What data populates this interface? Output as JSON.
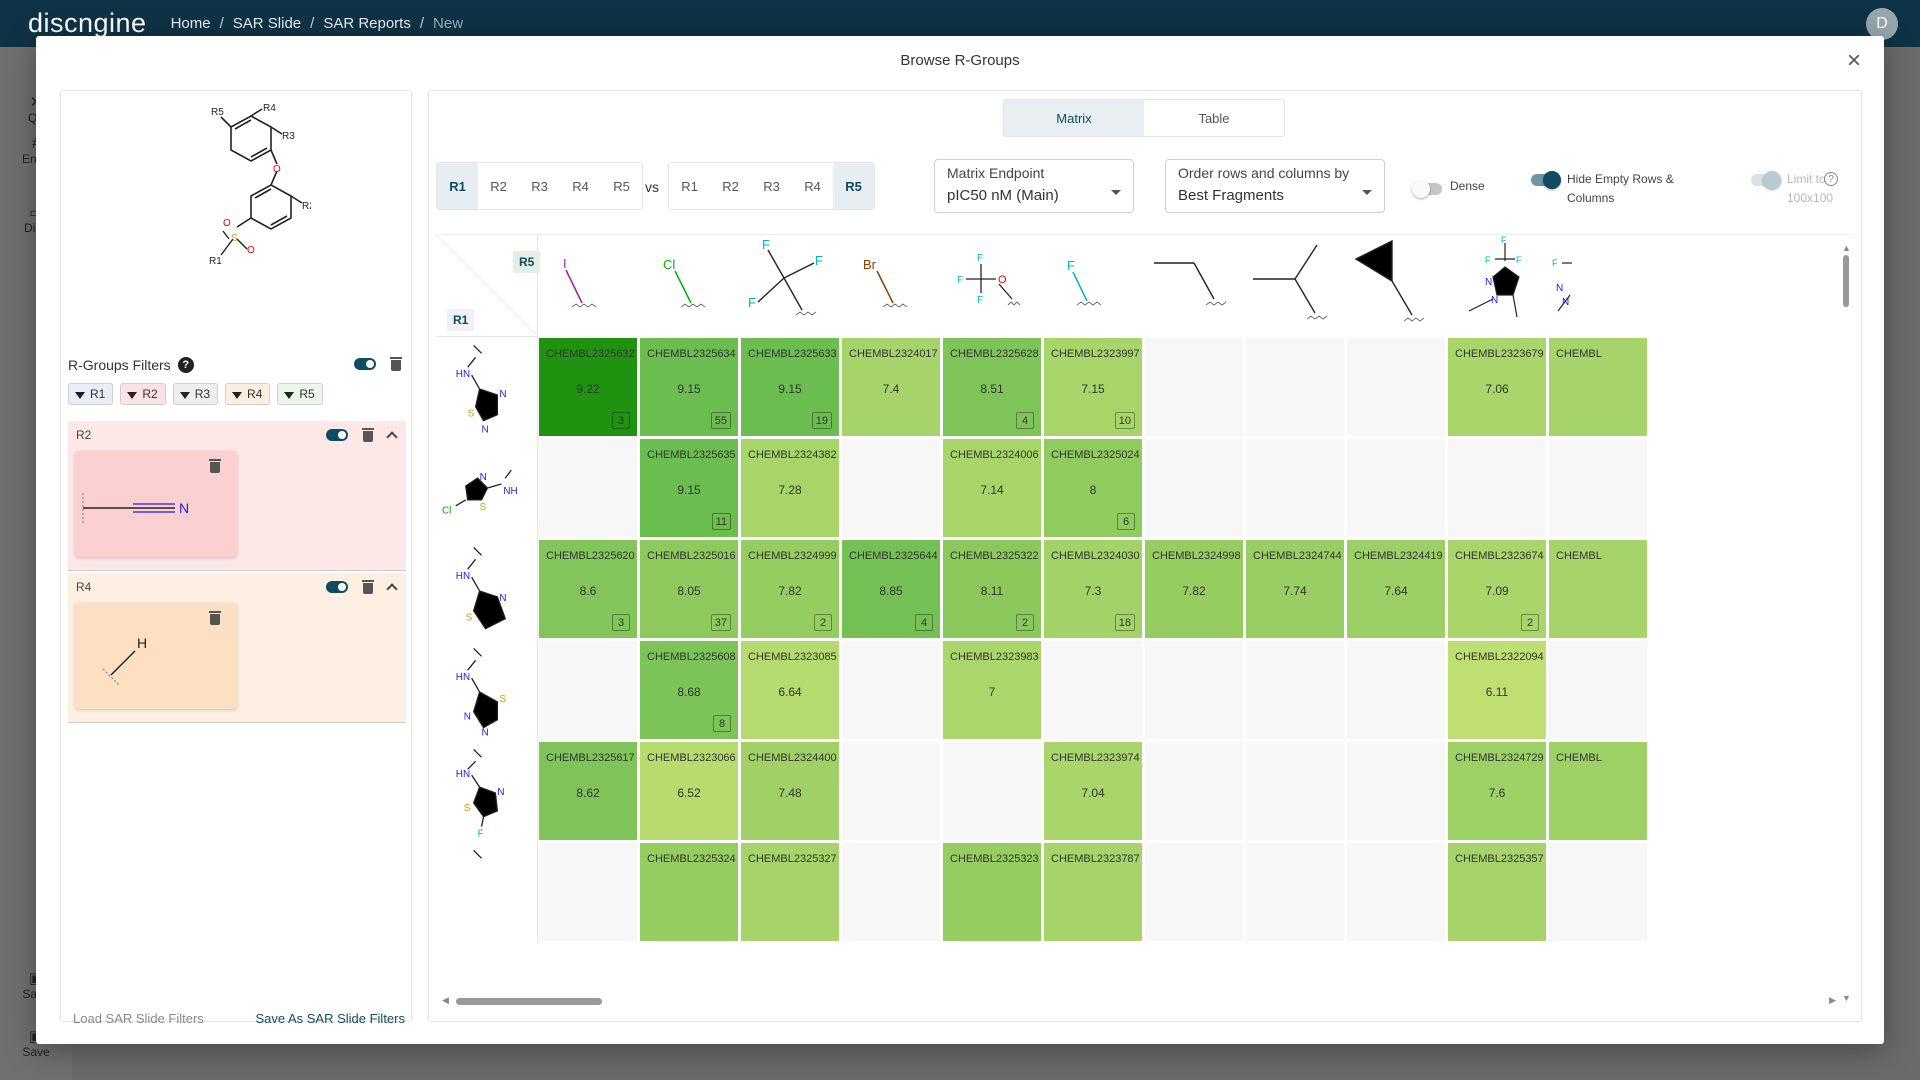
{
  "app": {
    "logo": "discngine",
    "breadcrumb": [
      "Home",
      "SAR Slide",
      "SAR Reports",
      "New"
    ],
    "avatar": "D",
    "rail": [
      {
        "label": "Qu",
        "icon": "wrench-icon"
      },
      {
        "label": "Endp",
        "icon": "hash-icon"
      },
      {
        "label": "Disp",
        "icon": "monitor-icon"
      },
      {
        "label": "Save",
        "icon": "save-icon"
      },
      {
        "label": "Save",
        "icon": "save-icon"
      }
    ]
  },
  "modal": {
    "title": "Browse R-Groups",
    "close_icon": "close-icon"
  },
  "left_panel": {
    "scaffold_labels": [
      "R5",
      "R4",
      "R3",
      "R2",
      "R1",
      "O",
      "O",
      "S",
      "O"
    ],
    "filters_title": "R-Groups Filters",
    "help": "?",
    "chips": [
      "R1",
      "R2",
      "R3",
      "R4",
      "R5"
    ],
    "filter_cards": [
      {
        "label": "R2",
        "fragment_atom": "N",
        "color": "#fde7e7"
      },
      {
        "label": "R4",
        "fragment_atom": "H",
        "color": "#fdf0e3"
      }
    ],
    "footer": {
      "load": "Load SAR Slide Filters",
      "save": "Save As SAR Slide Filters"
    }
  },
  "right_panel": {
    "tabs": [
      {
        "label": "Matrix",
        "active": true
      },
      {
        "label": "Table",
        "active": false
      }
    ],
    "rows_set": [
      "R1",
      "R2",
      "R3",
      "R4",
      "R5"
    ],
    "rows_active": "R1",
    "vs": "vs",
    "cols_set": [
      "R1",
      "R2",
      "R3",
      "R4",
      "R5"
    ],
    "cols_active": "R5",
    "endpoint": {
      "label": "Matrix Endpoint",
      "value": "pIC50 nM (Main)"
    },
    "order": {
      "label": "Order rows and columns by",
      "value": "Best Fragments"
    },
    "switches": {
      "dense": {
        "label": "Dense",
        "on": false
      },
      "hide_empty": {
        "label": "Hide Empty Rows & Columns",
        "on": true
      },
      "limit": {
        "label": "Limit to 100x100",
        "on": true,
        "disabled": true
      }
    },
    "help": "?"
  },
  "matrix": {
    "corner": {
      "col_group": "R5",
      "row_group": "R1"
    },
    "columns": [
      {
        "atoms": [
          "I"
        ]
      },
      {
        "atoms": [
          "Cl"
        ]
      },
      {
        "atoms": [
          "F",
          "F",
          "F"
        ]
      },
      {
        "atoms": [
          "Br"
        ]
      },
      {
        "atoms": [
          "F",
          "F",
          "F",
          "O"
        ]
      },
      {
        "atoms": [
          "F"
        ]
      },
      {
        "atoms": []
      },
      {
        "atoms": []
      },
      {
        "atoms": []
      },
      {
        "atoms": [
          "F",
          "F",
          "F",
          "N",
          "N"
        ]
      },
      {
        "atoms": [
          "F",
          "N",
          "N"
        ]
      }
    ],
    "rows": [
      {
        "atoms": [
          "HN",
          "N",
          "S",
          "N"
        ]
      },
      {
        "atoms": [
          "N",
          "NH",
          "S",
          "Cl"
        ]
      },
      {
        "atoms": [
          "HN",
          "N",
          "S"
        ]
      },
      {
        "atoms": [
          "HN",
          "S",
          "N",
          "N"
        ]
      },
      {
        "atoms": [
          "HN",
          "N",
          "S",
          "F"
        ]
      },
      {
        "atoms": []
      }
    ],
    "cells": [
      [
        {
          "id": "CHEMBL2325632",
          "value": "9.22",
          "count": "3",
          "color": "#1f930f"
        },
        {
          "id": "CHEMBL2325634",
          "value": "9.15",
          "count": "55",
          "color": "#6bbd4f"
        },
        {
          "id": "CHEMBL2325633",
          "value": "9.15",
          "count": "19",
          "color": "#6bbd4f"
        },
        {
          "id": "CHEMBL2324017",
          "value": "7.4",
          "count": "",
          "color": "#a6d46a"
        },
        {
          "id": "CHEMBL2325628",
          "value": "8.51",
          "count": "4",
          "color": "#7fc459"
        },
        {
          "id": "CHEMBL2323997",
          "value": "7.15",
          "count": "10",
          "color": "#a8d56a"
        },
        null,
        null,
        null,
        {
          "id": "CHEMBL2323679",
          "value": "7.06",
          "count": "",
          "color": "#a9d56b"
        },
        {
          "id": "CHEMBL",
          "value": "",
          "count": "",
          "color": "#a6d46a"
        }
      ],
      [
        null,
        {
          "id": "CHEMBL2325635",
          "value": "9.15",
          "count": "11",
          "color": "#6bbd4f"
        },
        {
          "id": "CHEMBL2324382",
          "value": "7.28",
          "count": "",
          "color": "#a8d56a"
        },
        null,
        {
          "id": "CHEMBL2324006",
          "value": "7.14",
          "count": "",
          "color": "#a8d56a"
        },
        {
          "id": "CHEMBL2325024",
          "value": "8",
          "count": "6",
          "color": "#8fcb5e"
        },
        null,
        null,
        null,
        null,
        null
      ],
      [
        {
          "id": "CHEMBL2325620",
          "value": "8.6",
          "count": "3",
          "color": "#82c55a"
        },
        {
          "id": "CHEMBL2325016",
          "value": "8.05",
          "count": "37",
          "color": "#8ec95d"
        },
        {
          "id": "CHEMBL2324999",
          "value": "7.82",
          "count": "2",
          "color": "#96cd61"
        },
        {
          "id": "CHEMBL2325644",
          "value": "8.85",
          "count": "4",
          "color": "#75c054"
        },
        {
          "id": "CHEMBL2325322",
          "value": "8.11",
          "count": "2",
          "color": "#8ac85c"
        },
        {
          "id": "CHEMBL2324030",
          "value": "7.3",
          "count": "18",
          "color": "#a3d269"
        },
        {
          "id": "CHEMBL2324998",
          "value": "7.82",
          "count": "",
          "color": "#96cd61"
        },
        {
          "id": "CHEMBL2324744",
          "value": "7.74",
          "count": "",
          "color": "#98ce63"
        },
        {
          "id": "CHEMBL2324419",
          "value": "7.64",
          "count": "",
          "color": "#9ccf65"
        },
        {
          "id": "CHEMBL2323674",
          "value": "7.09",
          "count": "2",
          "color": "#a9d56b"
        },
        {
          "id": "CHEMBL",
          "value": "",
          "count": "",
          "color": "#a6d46a"
        }
      ],
      [
        null,
        {
          "id": "CHEMBL2325608",
          "value": "8.68",
          "count": "8",
          "color": "#7cc358"
        },
        {
          "id": "CHEMBL2323085",
          "value": "6.64",
          "count": "",
          "color": "#b5da6f"
        },
        null,
        {
          "id": "CHEMBL2323983",
          "value": "7",
          "count": "",
          "color": "#abd66b"
        },
        null,
        null,
        null,
        null,
        {
          "id": "CHEMBL2322094",
          "value": "6.11",
          "count": "",
          "color": "#bfdf72"
        },
        null
      ],
      [
        {
          "id": "CHEMBL2325617",
          "value": "8.62",
          "count": "",
          "color": "#7fc459"
        },
        {
          "id": "CHEMBL2323066",
          "value": "6.52",
          "count": "",
          "color": "#b8db70"
        },
        {
          "id": "CHEMBL2324400",
          "value": "7.48",
          "count": "",
          "color": "#a0d066"
        },
        null,
        null,
        {
          "id": "CHEMBL2323974",
          "value": "7.04",
          "count": "",
          "color": "#aad56b"
        },
        null,
        null,
        null,
        {
          "id": "CHEMBL2324729",
          "value": "7.6",
          "count": "",
          "color": "#9dd065"
        },
        {
          "id": "CHEMBL",
          "value": "",
          "count": "",
          "color": "#9dd065"
        }
      ],
      [
        null,
        {
          "id": "CHEMBL2325324",
          "value": "",
          "count": "",
          "color": "#96cd61"
        },
        {
          "id": "CHEMBL2325327",
          "value": "",
          "count": "",
          "color": "#a6d46a"
        },
        null,
        {
          "id": "CHEMBL2325323",
          "value": "",
          "count": "",
          "color": "#96cd61"
        },
        {
          "id": "CHEMBL2323787",
          "value": "",
          "count": "",
          "color": "#a6d46a"
        },
        null,
        null,
        null,
        {
          "id": "CHEMBL2325357",
          "value": "",
          "count": "",
          "color": "#a6d46a"
        },
        null
      ]
    ]
  }
}
